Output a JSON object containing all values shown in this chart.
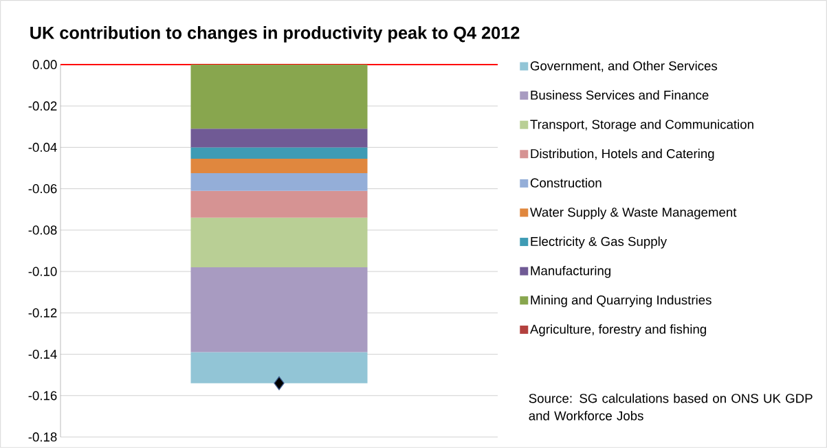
{
  "chart_data": {
    "type": "bar",
    "title": "UK contribution to changes in productivity peak to Q4 2012",
    "categories": [
      null
    ],
    "stacked": true,
    "ylim": [
      -0.18,
      0
    ],
    "yticks": [
      {
        "value": -0.18,
        "label": "-0.18"
      },
      {
        "value": -0.16,
        "label": "-0.16"
      },
      {
        "value": -0.14,
        "label": "-0.14"
      },
      {
        "value": -0.12,
        "label": "-0.12"
      },
      {
        "value": -0.1,
        "label": "-0.10"
      },
      {
        "value": -0.08,
        "label": "-0.08"
      },
      {
        "value": -0.06,
        "label": "-0.06"
      },
      {
        "value": -0.04,
        "label": "-0.04"
      },
      {
        "value": -0.02,
        "label": "-0.02"
      },
      {
        "value": 0,
        "label": "0.00"
      }
    ],
    "grid": "y",
    "legend": "right",
    "series": [
      {
        "name": "Agriculture, forestry and fishing",
        "color": "#b3403e",
        "values": [
          0
        ]
      },
      {
        "name": "Mining and Quarrying Industries",
        "color": "#88a64e",
        "values": [
          -0.031
        ]
      },
      {
        "name": "Manufacturing",
        "color": "#705a95",
        "values": [
          -0.009
        ]
      },
      {
        "name": "Electricity & Gas Supply",
        "color": "#3e9bb4",
        "values": [
          -0.0055
        ]
      },
      {
        "name": "Water Supply & Waste Management",
        "color": "#e0873e",
        "values": [
          -0.007
        ]
      },
      {
        "name": "Construction",
        "color": "#94aed8",
        "values": [
          -0.0085
        ]
      },
      {
        "name": "Distribution, Hotels and Catering",
        "color": "#d69393",
        "values": [
          -0.013
        ]
      },
      {
        "name": "Transport, Storage and Communication",
        "color": "#b9cf95",
        "values": [
          -0.024
        ]
      },
      {
        "name": "Business Services and Finance",
        "color": "#a89bc1",
        "values": [
          -0.041
        ]
      },
      {
        "name": "Government, and Other Services",
        "color": "#92c5d6",
        "values": [
          -0.015
        ]
      },
      {
        "type": "scatter",
        "color": "#000000",
        "marker": "diamond",
        "values": [
          -0.154
        ]
      }
    ],
    "ref_lines": [
      {
        "axis": "y",
        "value": 0,
        "color": "#ff0000"
      }
    ],
    "annotations": [
      "Source: SG calculations based on ONS UK GDP and Workforce Jobs"
    ]
  }
}
